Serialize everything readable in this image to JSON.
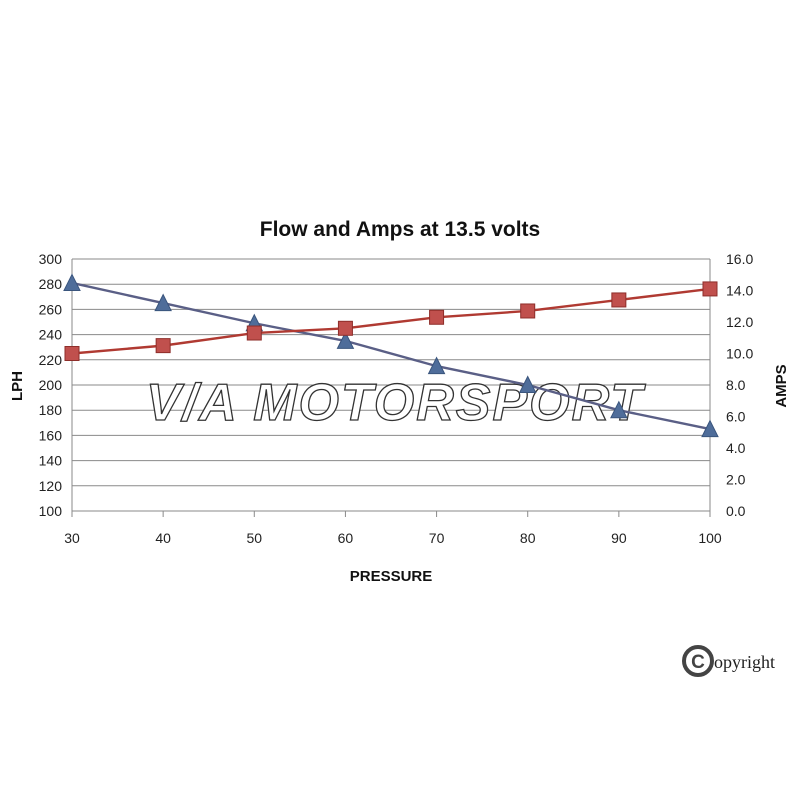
{
  "chart_data": {
    "type": "line",
    "title": "Flow and Amps at 13.5 volts",
    "xlabel": "PRESSURE",
    "ylabel": "LPH",
    "y2label": "AMPS",
    "x": [
      30,
      40,
      50,
      60,
      70,
      80,
      90,
      100
    ],
    "xlim": [
      30,
      100
    ],
    "ylim": [
      100,
      300
    ],
    "y2lim": [
      0,
      16
    ],
    "x_ticks": [
      "30",
      "40",
      "50",
      "60",
      "70",
      "80",
      "90",
      "100"
    ],
    "y_ticks": [
      "100",
      "120",
      "140",
      "160",
      "180",
      "200",
      "220",
      "240",
      "260",
      "280",
      "300"
    ],
    "y2_ticks": [
      "0.0",
      "2.0",
      "4.0",
      "6.0",
      "8.0",
      "10.0",
      "12.0",
      "14.0",
      "16.0"
    ],
    "grid": true,
    "series": [
      {
        "axis": "left",
        "marker": "triangle",
        "color": "#4F6D9A",
        "line_color": "#5A5F86",
        "values": [
          281,
          265,
          249,
          235,
          215,
          200,
          180,
          165
        ]
      },
      {
        "axis": "right",
        "marker": "square",
        "color": "#C0504D",
        "line_color": "#B03A32",
        "values": [
          10.0,
          10.5,
          11.3,
          11.6,
          12.3,
          12.7,
          13.4,
          14.1
        ]
      }
    ]
  },
  "watermark": {
    "text": "V/A MOTORSPORT"
  },
  "copyright": {
    "symbol": "C",
    "text": "opyright"
  }
}
